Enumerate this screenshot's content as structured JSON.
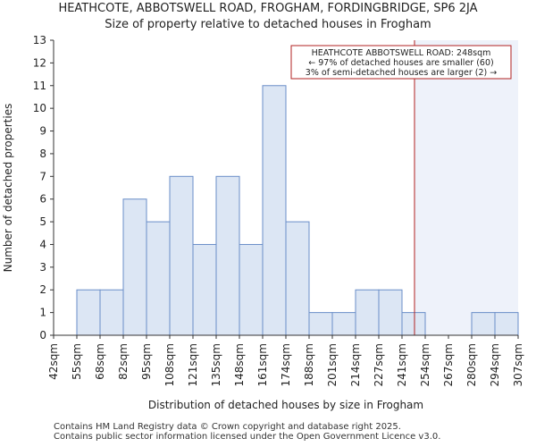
{
  "chart_data": {
    "type": "bar",
    "title": "HEATHCOTE, ABBOTSWELL ROAD, FROGHAM, FORDINGBRIDGE, SP6 2JA",
    "subtitle": "Size of property relative to detached houses in Frogham",
    "xlabel": "Distribution of detached houses by size in Frogham",
    "ylabel": "Number of detached properties",
    "bin_edges": [
      "42sqm",
      "55sqm",
      "68sqm",
      "82sqm",
      "95sqm",
      "108sqm",
      "121sqm",
      "135sqm",
      "148sqm",
      "161sqm",
      "174sqm",
      "188sqm",
      "201sqm",
      "214sqm",
      "227sqm",
      "241sqm",
      "254sqm",
      "267sqm",
      "280sqm",
      "294sqm",
      "307sqm"
    ],
    "values": [
      0,
      2,
      2,
      6,
      5,
      7,
      4,
      7,
      4,
      11,
      5,
      1,
      1,
      2,
      2,
      1,
      0,
      0,
      1,
      1
    ],
    "ylim": [
      0,
      13
    ],
    "yticks": [
      0,
      1,
      2,
      3,
      4,
      5,
      6,
      7,
      8,
      9,
      10,
      11,
      12,
      13
    ],
    "grid": false,
    "marker_value_sqm": 248,
    "annotation": {
      "lines": [
        "HEATHCOTE ABBOTSWELL ROAD: 248sqm",
        "← 97% of detached houses are smaller (60)",
        "3% of semi-detached houses are larger (2) →"
      ]
    },
    "colors": {
      "bar_fill": "#dce6f4",
      "bar_stroke": "#6a8ec8",
      "marker": "#b22222",
      "shade": "#eef2fa"
    }
  },
  "footer": {
    "line1": "Contains HM Land Registry data © Crown copyright and database right 2025.",
    "line2": "Contains public sector information licensed under the Open Government Licence v3.0."
  }
}
